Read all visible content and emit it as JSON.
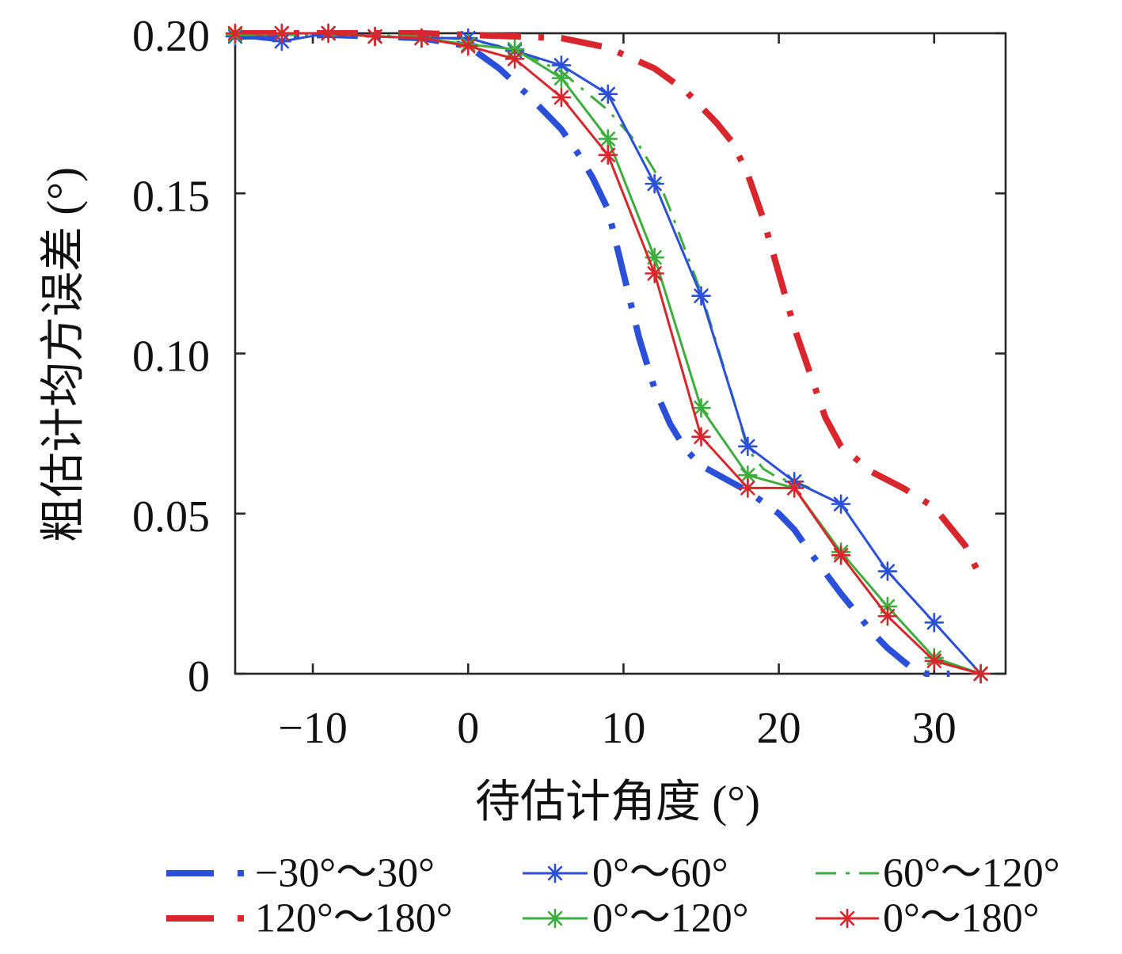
{
  "chart_data": {
    "type": "line",
    "xlabel": "待估计角度 (°)",
    "ylabel": "粗估计均方误差 (°)",
    "xlim": [
      -15,
      34.6
    ],
    "ylim": [
      0,
      0.2
    ],
    "x_ticks": [
      -10,
      0,
      10,
      20,
      30
    ],
    "x_tick_labels": [
      "−10",
      "0",
      "10",
      "20",
      "30"
    ],
    "y_ticks": [
      0,
      0.05,
      0.1,
      0.15,
      0.2
    ],
    "y_tick_labels": [
      "0",
      "0.05",
      "0.10",
      "0.15",
      "0.20"
    ],
    "grid": false,
    "box": true,
    "legend_position": "bottom",
    "series": [
      {
        "name": "−30°～30°",
        "color": "#2a4fd8",
        "line_style": "dash-dot",
        "marker": "none",
        "x": [
          -15,
          -12,
          -9,
          -6,
          -3,
          0,
          2,
          4,
          6,
          7,
          8,
          9,
          10,
          11,
          12,
          13,
          14,
          15,
          18,
          20,
          21,
          22,
          24,
          26,
          27,
          28.5,
          29.5,
          31
        ],
        "y": [
          0.199,
          0.199,
          0.1995,
          0.199,
          0.1985,
          0.196,
          0.189,
          0.18,
          0.17,
          0.163,
          0.155,
          0.145,
          0.125,
          0.105,
          0.089,
          0.078,
          0.07,
          0.065,
          0.057,
          0.05,
          0.045,
          0.038,
          0.025,
          0.013,
          0.008,
          0.002,
          0,
          0
        ]
      },
      {
        "name": "0°～60°",
        "color": "#2a4fd8",
        "line_style": "solid",
        "marker": "asterisk",
        "x": [
          -15,
          -12,
          -9,
          -6,
          -3,
          0,
          3,
          6,
          9,
          12,
          15,
          18,
          21,
          24,
          27,
          30,
          33
        ],
        "y": [
          0.199,
          0.1975,
          0.2,
          0.199,
          0.1985,
          0.1985,
          0.1945,
          0.19,
          0.181,
          0.153,
          0.118,
          0.071,
          0.06,
          0.053,
          0.032,
          0.016,
          0
        ]
      },
      {
        "name": "60°～120°",
        "color": "#3cae3c",
        "line_style": "dash-dot",
        "marker": "none",
        "x": [
          -15,
          -9,
          -3,
          0,
          3,
          6,
          9,
          11,
          12,
          13,
          14,
          15,
          16,
          17,
          18,
          19,
          20,
          21,
          22
        ],
        "y": [
          0.1995,
          0.1995,
          0.199,
          0.198,
          0.195,
          0.188,
          0.176,
          0.165,
          0.157,
          0.145,
          0.132,
          0.119,
          0.103,
          0.087,
          0.07,
          0.064,
          0.061,
          0.06,
          0.058
        ]
      },
      {
        "name": "120°～180°",
        "color": "#d8262c",
        "line_style": "dash-dot",
        "marker": "none",
        "x": [
          -15,
          -9,
          -3,
          0,
          3,
          6,
          9,
          12,
          14,
          16,
          17,
          18,
          19,
          20,
          21,
          22,
          23,
          24,
          26,
          28,
          30,
          32,
          33
        ],
        "y": [
          0.2,
          0.2,
          0.2,
          0.1995,
          0.199,
          0.1985,
          0.1955,
          0.189,
          0.182,
          0.172,
          0.166,
          0.156,
          0.142,
          0.125,
          0.108,
          0.094,
          0.08,
          0.071,
          0.063,
          0.058,
          0.052,
          0.04,
          0.03
        ]
      },
      {
        "name": "0°～120°",
        "color": "#3cae3c",
        "line_style": "solid",
        "marker": "asterisk",
        "x": [
          -15,
          -12,
          -9,
          -6,
          -3,
          0,
          3,
          6,
          9,
          12,
          15,
          18,
          21,
          24,
          27,
          30,
          33
        ],
        "y": [
          0.1995,
          0.2,
          0.2,
          0.199,
          0.1985,
          0.1965,
          0.195,
          0.186,
          0.167,
          0.13,
          0.083,
          0.062,
          0.058,
          0.038,
          0.021,
          0.005,
          0
        ]
      },
      {
        "name": "0°～180°",
        "color": "#d8262c",
        "line_style": "solid",
        "marker": "asterisk",
        "x": [
          -15,
          -12,
          -9,
          -6,
          -3,
          0,
          3,
          6,
          9,
          12,
          15,
          18,
          21,
          24,
          27,
          30,
          33
        ],
        "y": [
          0.2,
          0.2,
          0.2,
          0.199,
          0.1985,
          0.196,
          0.192,
          0.18,
          0.162,
          0.125,
          0.074,
          0.058,
          0.058,
          0.037,
          0.018,
          0.004,
          0
        ]
      }
    ]
  }
}
